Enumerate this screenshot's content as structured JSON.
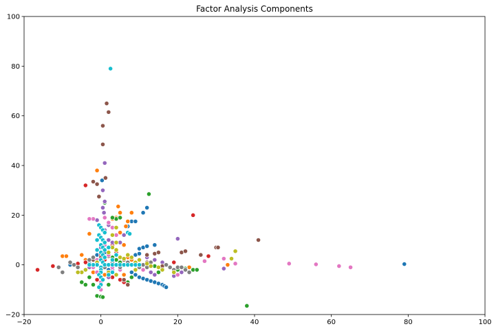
{
  "chart_data": {
    "type": "scatter",
    "title": "Factor Analysis Components",
    "xlabel": "",
    "ylabel": "",
    "xlim": [
      -20,
      100
    ],
    "ylim": [
      -20,
      100
    ],
    "x_ticks": [
      -20,
      0,
      20,
      40,
      60,
      80,
      100
    ],
    "y_ticks": [
      -20,
      0,
      20,
      40,
      60,
      80,
      100
    ],
    "x_tick_labels": [
      "−20",
      "0",
      "20",
      "40",
      "60",
      "80",
      "100"
    ],
    "y_tick_labels": [
      "−20",
      "0",
      "20",
      "40",
      "60",
      "80",
      "100"
    ],
    "grid": false,
    "legend": "none",
    "series": [
      {
        "color": "#1f77b4",
        "points": [
          [
            79,
            0.3
          ],
          [
            -8,
            0
          ],
          [
            -6,
            -0.5
          ],
          [
            -3,
            0.5
          ],
          [
            9,
            4
          ],
          [
            10,
            4.5
          ],
          [
            10,
            6.5
          ],
          [
            11,
            7
          ],
          [
            11,
            21
          ],
          [
            12,
            23
          ],
          [
            7,
            15.5
          ],
          [
            8,
            17.5
          ],
          [
            9,
            17.5
          ],
          [
            12,
            7.5
          ],
          [
            14,
            8
          ],
          [
            8,
            -3
          ],
          [
            9,
            -4
          ],
          [
            10,
            -5
          ],
          [
            11,
            -5.5
          ],
          [
            12,
            -6
          ],
          [
            13,
            -6.5
          ],
          [
            14,
            -7
          ],
          [
            15,
            -7.5
          ],
          [
            16,
            -8
          ],
          [
            16.5,
            -8.5
          ],
          [
            17,
            -9
          ],
          [
            3,
            1
          ],
          [
            4,
            0
          ],
          [
            5,
            1
          ],
          [
            6,
            2
          ],
          [
            0.3,
            34
          ],
          [
            -1,
            4
          ],
          [
            2,
            -2
          ],
          [
            1,
            5
          ]
        ]
      },
      {
        "color": "#ff7f0e",
        "points": [
          [
            -1,
            38
          ],
          [
            4.5,
            23.5
          ],
          [
            5,
            21
          ],
          [
            4,
            19
          ],
          [
            6.5,
            15.5
          ],
          [
            7,
            17.5
          ],
          [
            8,
            21
          ],
          [
            4,
            15
          ],
          [
            5,
            13
          ],
          [
            -10,
            3.5
          ],
          [
            -9,
            3.5
          ],
          [
            -5,
            4
          ],
          [
            -4,
            2
          ],
          [
            -3,
            12.5
          ],
          [
            3,
            18.5
          ],
          [
            6,
            8
          ],
          [
            7,
            3
          ],
          [
            8,
            2
          ],
          [
            9,
            1
          ],
          [
            33,
            0
          ],
          [
            -2,
            -3
          ],
          [
            1,
            -4
          ],
          [
            2,
            -5
          ],
          [
            23,
            -1
          ],
          [
            6,
            -4
          ]
        ]
      },
      {
        "color": "#2ca02c",
        "points": [
          [
            12.5,
            28.5
          ],
          [
            38,
            -16.5
          ],
          [
            -1,
            -12.5
          ],
          [
            0,
            -12.8
          ],
          [
            0.5,
            -13
          ],
          [
            -2,
            -8
          ],
          [
            -4,
            -8
          ],
          [
            -5,
            -7
          ],
          [
            2,
            -8
          ],
          [
            7,
            -7
          ],
          [
            8,
            -5
          ],
          [
            20,
            -2
          ],
          [
            22,
            -1.5
          ],
          [
            24,
            -2
          ],
          [
            25,
            -2
          ],
          [
            14,
            -0.5
          ],
          [
            16,
            -1.5
          ],
          [
            15,
            -3
          ],
          [
            4,
            18.5
          ],
          [
            3,
            19
          ],
          [
            5,
            19
          ],
          [
            -3,
            -5
          ],
          [
            1,
            25
          ],
          [
            3,
            3
          ],
          [
            4,
            2
          ],
          [
            5,
            1
          ]
        ]
      },
      {
        "color": "#d62728",
        "points": [
          [
            -16.5,
            -2
          ],
          [
            -12.5,
            -0.5
          ],
          [
            -4,
            32
          ],
          [
            24,
            20
          ],
          [
            28,
            3.5
          ],
          [
            2,
            -3
          ],
          [
            3,
            -5
          ],
          [
            5,
            -6
          ],
          [
            6,
            -7
          ],
          [
            7,
            -8
          ],
          [
            -4,
            1
          ],
          [
            -6,
            0.5
          ],
          [
            -2,
            -1
          ],
          [
            0,
            4
          ],
          [
            1,
            2
          ],
          [
            19,
            1
          ],
          [
            -1,
            -6
          ],
          [
            3,
            8
          ],
          [
            4,
            5
          ]
        ]
      },
      {
        "color": "#9467bd",
        "points": [
          [
            1,
            41
          ],
          [
            0.5,
            30
          ],
          [
            1,
            25.5
          ],
          [
            0.5,
            23
          ],
          [
            0.8,
            21
          ],
          [
            20,
            10.5
          ],
          [
            32,
            -1.5
          ],
          [
            2,
            10
          ],
          [
            3,
            9
          ],
          [
            5,
            9
          ],
          [
            6,
            12
          ],
          [
            12,
            3
          ],
          [
            14,
            2
          ],
          [
            16,
            1
          ],
          [
            13,
            -3
          ],
          [
            14,
            -4
          ],
          [
            2,
            16
          ],
          [
            -1,
            18
          ],
          [
            1,
            14
          ],
          [
            0,
            7
          ],
          [
            3,
            -2
          ],
          [
            -3,
            -1
          ],
          [
            19,
            -4.5
          ],
          [
            21,
            -3
          ],
          [
            2,
            -5
          ]
        ]
      },
      {
        "color": "#8c564b",
        "points": [
          [
            1.5,
            65
          ],
          [
            2,
            61.5
          ],
          [
            0.5,
            56
          ],
          [
            0.5,
            48.5
          ],
          [
            1.2,
            35
          ],
          [
            -2,
            33.5
          ],
          [
            -1,
            32.5
          ],
          [
            -0.5,
            27.5
          ],
          [
            41,
            10
          ],
          [
            30,
            7
          ],
          [
            30.5,
            7
          ],
          [
            21,
            5
          ],
          [
            22,
            5.5
          ],
          [
            26,
            4
          ],
          [
            6,
            2
          ],
          [
            8,
            3
          ],
          [
            12,
            4
          ],
          [
            14,
            4.5
          ],
          [
            15,
            5
          ],
          [
            0,
            3
          ],
          [
            2,
            3.5
          ],
          [
            -2,
            2
          ],
          [
            3,
            -3
          ],
          [
            6,
            -6
          ],
          [
            7,
            -8
          ],
          [
            12,
            1
          ],
          [
            16,
            -0.5
          ]
        ]
      },
      {
        "color": "#e377c2",
        "points": [
          [
            49,
            0.5
          ],
          [
            56,
            0.2
          ],
          [
            62,
            -0.5
          ],
          [
            65,
            -1
          ],
          [
            35,
            0.5
          ],
          [
            32,
            2.5
          ],
          [
            27,
            1.5
          ],
          [
            -2,
            18.5
          ],
          [
            -3,
            18.5
          ],
          [
            1,
            19
          ],
          [
            2,
            17
          ],
          [
            3,
            15
          ],
          [
            4,
            12
          ],
          [
            0,
            -7
          ],
          [
            0,
            -10
          ],
          [
            -1,
            -3
          ],
          [
            -2,
            -1
          ],
          [
            -1,
            2
          ],
          [
            2,
            4
          ],
          [
            1,
            8
          ],
          [
            3,
            -1
          ],
          [
            5,
            -2
          ],
          [
            11,
            -2
          ],
          [
            20,
            -4
          ]
        ]
      },
      {
        "color": "#7f7f7f",
        "points": [
          [
            -10,
            -3
          ],
          [
            -11,
            -1
          ],
          [
            -8,
            1
          ],
          [
            -7,
            0
          ],
          [
            -6,
            -1
          ],
          [
            0,
            -2
          ],
          [
            1,
            -1
          ],
          [
            2,
            0
          ],
          [
            3,
            1
          ],
          [
            5,
            -1
          ],
          [
            6,
            0
          ],
          [
            7,
            1
          ],
          [
            10,
            -1
          ],
          [
            11,
            0
          ],
          [
            13,
            1
          ],
          [
            15,
            -1
          ],
          [
            18,
            -1
          ],
          [
            19,
            -2
          ],
          [
            20,
            -1
          ],
          [
            21,
            -1
          ],
          [
            22,
            -2
          ],
          [
            23,
            -3
          ],
          [
            17,
            0
          ],
          [
            12,
            -1
          ],
          [
            -2,
            3
          ],
          [
            -3,
            2
          ]
        ]
      },
      {
        "color": "#bcbd22",
        "points": [
          [
            35,
            5.5
          ],
          [
            34,
            2.5
          ],
          [
            12,
            0.5
          ],
          [
            13,
            -0.5
          ],
          [
            9,
            1
          ],
          [
            10,
            2
          ],
          [
            5,
            3
          ],
          [
            6,
            2.5
          ],
          [
            7,
            4
          ],
          [
            8,
            3
          ],
          [
            4,
            6
          ],
          [
            3,
            7
          ],
          [
            2,
            5
          ],
          [
            1,
            3
          ],
          [
            0,
            2
          ],
          [
            -1,
            1
          ],
          [
            -2,
            0
          ],
          [
            -4,
            -2
          ],
          [
            -5,
            -3
          ],
          [
            -6,
            -3
          ],
          [
            2,
            -3
          ],
          [
            4,
            -4
          ],
          [
            9,
            -2
          ],
          [
            15,
            -1
          ],
          [
            16,
            -2
          ],
          [
            19,
            -3
          ],
          [
            4,
            9
          ],
          [
            3,
            12
          ],
          [
            4,
            15
          ]
        ]
      },
      {
        "color": "#17becf",
        "points": [
          [
            2.5,
            79
          ],
          [
            -0.5,
            16
          ],
          [
            0,
            15
          ],
          [
            0.5,
            14
          ],
          [
            1,
            13
          ],
          [
            -0.5,
            12
          ],
          [
            0,
            11
          ],
          [
            0.5,
            10
          ],
          [
            1,
            9
          ],
          [
            0,
            8
          ],
          [
            0.5,
            7
          ],
          [
            1,
            6
          ],
          [
            0,
            5
          ],
          [
            0.5,
            4
          ],
          [
            1,
            3
          ],
          [
            0,
            2
          ],
          [
            0.5,
            1
          ],
          [
            1,
            0
          ],
          [
            2,
            0
          ],
          [
            3,
            0
          ],
          [
            4,
            0
          ],
          [
            5,
            0
          ],
          [
            6,
            0
          ],
          [
            7,
            0
          ],
          [
            8,
            0
          ],
          [
            9,
            0
          ],
          [
            10,
            0
          ],
          [
            -1,
            0
          ],
          [
            -2,
            0
          ],
          [
            -3,
            0
          ],
          [
            0,
            -1
          ],
          [
            0,
            -2
          ],
          [
            0,
            -3
          ],
          [
            -0.5,
            -4
          ],
          [
            0,
            -5
          ],
          [
            0.5,
            -6
          ],
          [
            0,
            -8
          ],
          [
            -0.5,
            -9
          ],
          [
            7,
            13
          ],
          [
            7.5,
            12.5
          ],
          [
            3,
            2
          ],
          [
            2,
            7
          ],
          [
            4,
            4
          ],
          [
            -1,
            10
          ],
          [
            -1,
            6
          ],
          [
            2,
            -4
          ],
          [
            3,
            -3
          ]
        ]
      }
    ]
  }
}
